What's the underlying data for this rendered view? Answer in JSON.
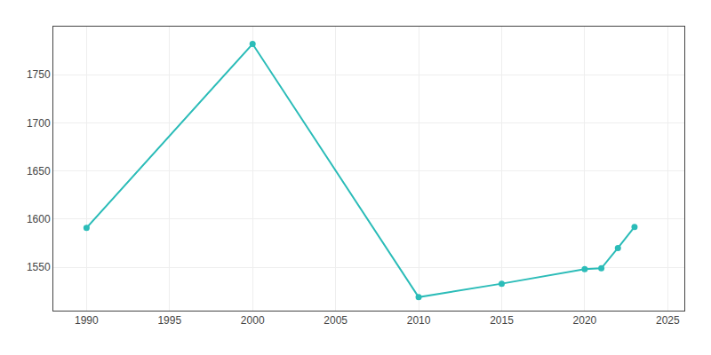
{
  "chart_data": {
    "type": "line",
    "x": [
      1990,
      2000,
      2010,
      2015,
      2020,
      2021,
      2022,
      2023
    ],
    "values": [
      1591,
      1782,
      1519,
      1533,
      1548,
      1549,
      1570,
      1592
    ],
    "color": "#2bbcb8",
    "marker": "circle",
    "xlim": [
      1988,
      2026
    ],
    "xticks": [
      1990,
      1995,
      2000,
      2005,
      2010,
      2015,
      2020,
      2025
    ],
    "ylim": [
      1505,
      1800
    ],
    "yticks": [
      1550,
      1600,
      1650,
      1700,
      1750
    ],
    "grid": true
  }
}
